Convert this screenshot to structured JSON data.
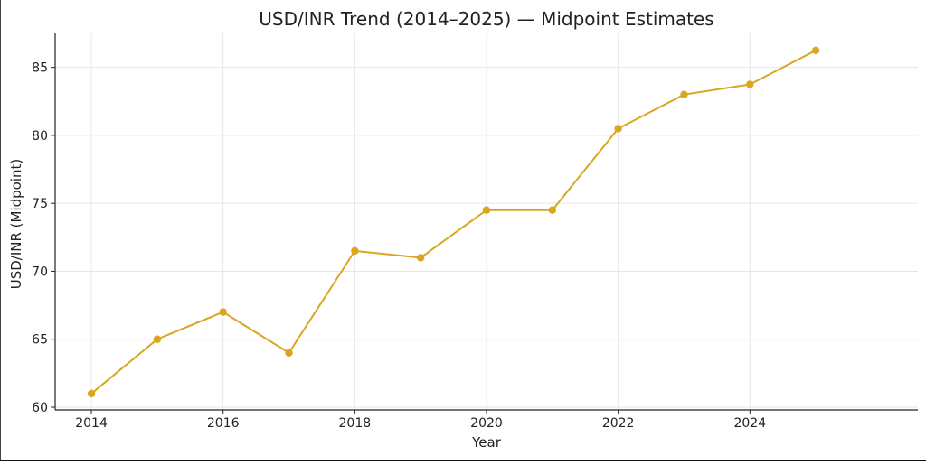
{
  "chart_data": {
    "type": "line",
    "title": "USD/INR Trend (2014–2025) — Midpoint Estimates",
    "xlabel": "Year",
    "ylabel": "USD/INR (Midpoint)",
    "x": [
      2014,
      2015,
      2016,
      2017,
      2018,
      2019,
      2020,
      2021,
      2022,
      2023,
      2024,
      2025
    ],
    "series": [
      {
        "values": [
          61.0,
          65.0,
          67.0,
          64.0,
          71.5,
          71.0,
          74.5,
          74.5,
          80.5,
          83.0,
          83.75,
          86.25
        ]
      }
    ],
    "x_ticks": [
      "2014",
      "2016",
      "2018",
      "2020",
      "2022",
      "2024"
    ],
    "y_ticks": [
      "60",
      "65",
      "70",
      "75",
      "80",
      "85"
    ],
    "xlim": [
      2013.45,
      2026.55
    ],
    "ylim": [
      59.8,
      87.5
    ],
    "grid": true,
    "line_color": "#DAA520",
    "marker": "circle"
  }
}
